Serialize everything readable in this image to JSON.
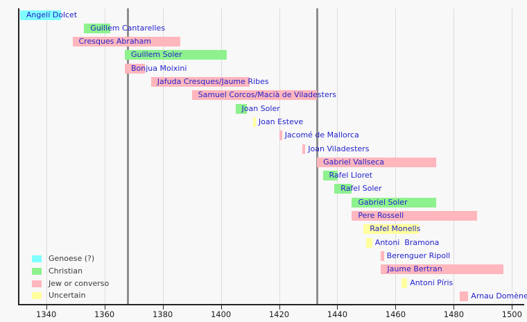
{
  "chart_data": {
    "type": "bar",
    "subtype": "timeline-gantt",
    "description": "Chronology timeline of Majorcan chartmakers; horizontal bars show active period, colored by religious affiliation",
    "x_axis": {
      "ticks": [
        1340,
        1360,
        1380,
        1400,
        1420,
        1440,
        1460,
        1480,
        1500
      ],
      "range": [
        1330,
        1504
      ],
      "grid": true
    },
    "event_line_years": [
      1368,
      1433
    ],
    "legend": {
      "position": "bottom-left",
      "items": [
        {
          "key": "genoese",
          "label": "Genoese (?)",
          "color": "#80ffff"
        },
        {
          "key": "christian",
          "label": "Christian",
          "color": "#8df28d"
        },
        {
          "key": "jew",
          "label": "Jew or converso",
          "color": "#ffb6bd"
        },
        {
          "key": "uncertain",
          "label": "Uncertain",
          "color": "#ffff9e"
        }
      ]
    },
    "rows": [
      {
        "name": "Angelí Dolcet",
        "category": "genoese",
        "start": 1331,
        "end": 1345
      },
      {
        "name": "Guillem Cantarelles",
        "category": "christian",
        "start": 1353,
        "end": 1362
      },
      {
        "name": "Cresques Abraham",
        "category": "jew",
        "start": 1349,
        "end": 1386
      },
      {
        "name": "Guillem Soler",
        "category": "christian",
        "start": 1367,
        "end": 1402
      },
      {
        "name": "Bonjua Moixini",
        "category": "jew",
        "start": 1367,
        "end": 1374
      },
      {
        "name": "Jafuda Cresques/Jaume Ribes",
        "category": "jew",
        "start": 1376,
        "end": 1410
      },
      {
        "name": "Samuel Corcos/Macià de Viladesters",
        "category": "jew",
        "start": 1390,
        "end": 1433
      },
      {
        "name": "Joan Soler",
        "category": "christian",
        "start": 1405,
        "end": 1409
      },
      {
        "name": "Joan Esteve",
        "category": "uncertain",
        "start": 1411,
        "end": 1412
      },
      {
        "name": "Jacomé de Mallorca",
        "category": "jew",
        "start": 1420,
        "end": 1421
      },
      {
        "name": "Joan Viladesters",
        "category": "jew",
        "start": 1428,
        "end": 1429
      },
      {
        "name": "Gabriel Vallseca",
        "category": "jew",
        "start": 1433,
        "end": 1474
      },
      {
        "name": "Rafel Lloret",
        "category": "christian",
        "start": 1435,
        "end": 1440
      },
      {
        "name": "Rafel Soler",
        "category": "christian",
        "start": 1439,
        "end": 1445
      },
      {
        "name": "Gabriel Soler",
        "category": "christian",
        "start": 1445,
        "end": 1474
      },
      {
        "name": "Pere Rossell",
        "category": "jew",
        "start": 1445,
        "end": 1488
      },
      {
        "name": "Rafel Monells",
        "category": "uncertain",
        "start": 1449,
        "end": 1468
      },
      {
        "name": "Antoni  Bramona",
        "category": "uncertain",
        "start": 1450,
        "end": 1452
      },
      {
        "name": "Berenguer Ripoll",
        "category": "jew",
        "start": 1455,
        "end": 1456
      },
      {
        "name": "Jaume Bertran",
        "category": "jew",
        "start": 1455,
        "end": 1497
      },
      {
        "name": "Antoni Píris",
        "category": "uncertain",
        "start": 1462,
        "end": 1464
      },
      {
        "name": "Arnau Domènech",
        "category": "jew",
        "start": 1482,
        "end": 1485
      }
    ],
    "colors": {
      "label_text": "#2222cc",
      "tick_text": "#1a1a1a",
      "axis": "#222222",
      "gridline": "#dcdcdc",
      "event_line": "#8e8e8e",
      "background": "#f8f8f8",
      "legend_text": "#3a3a3a"
    }
  }
}
